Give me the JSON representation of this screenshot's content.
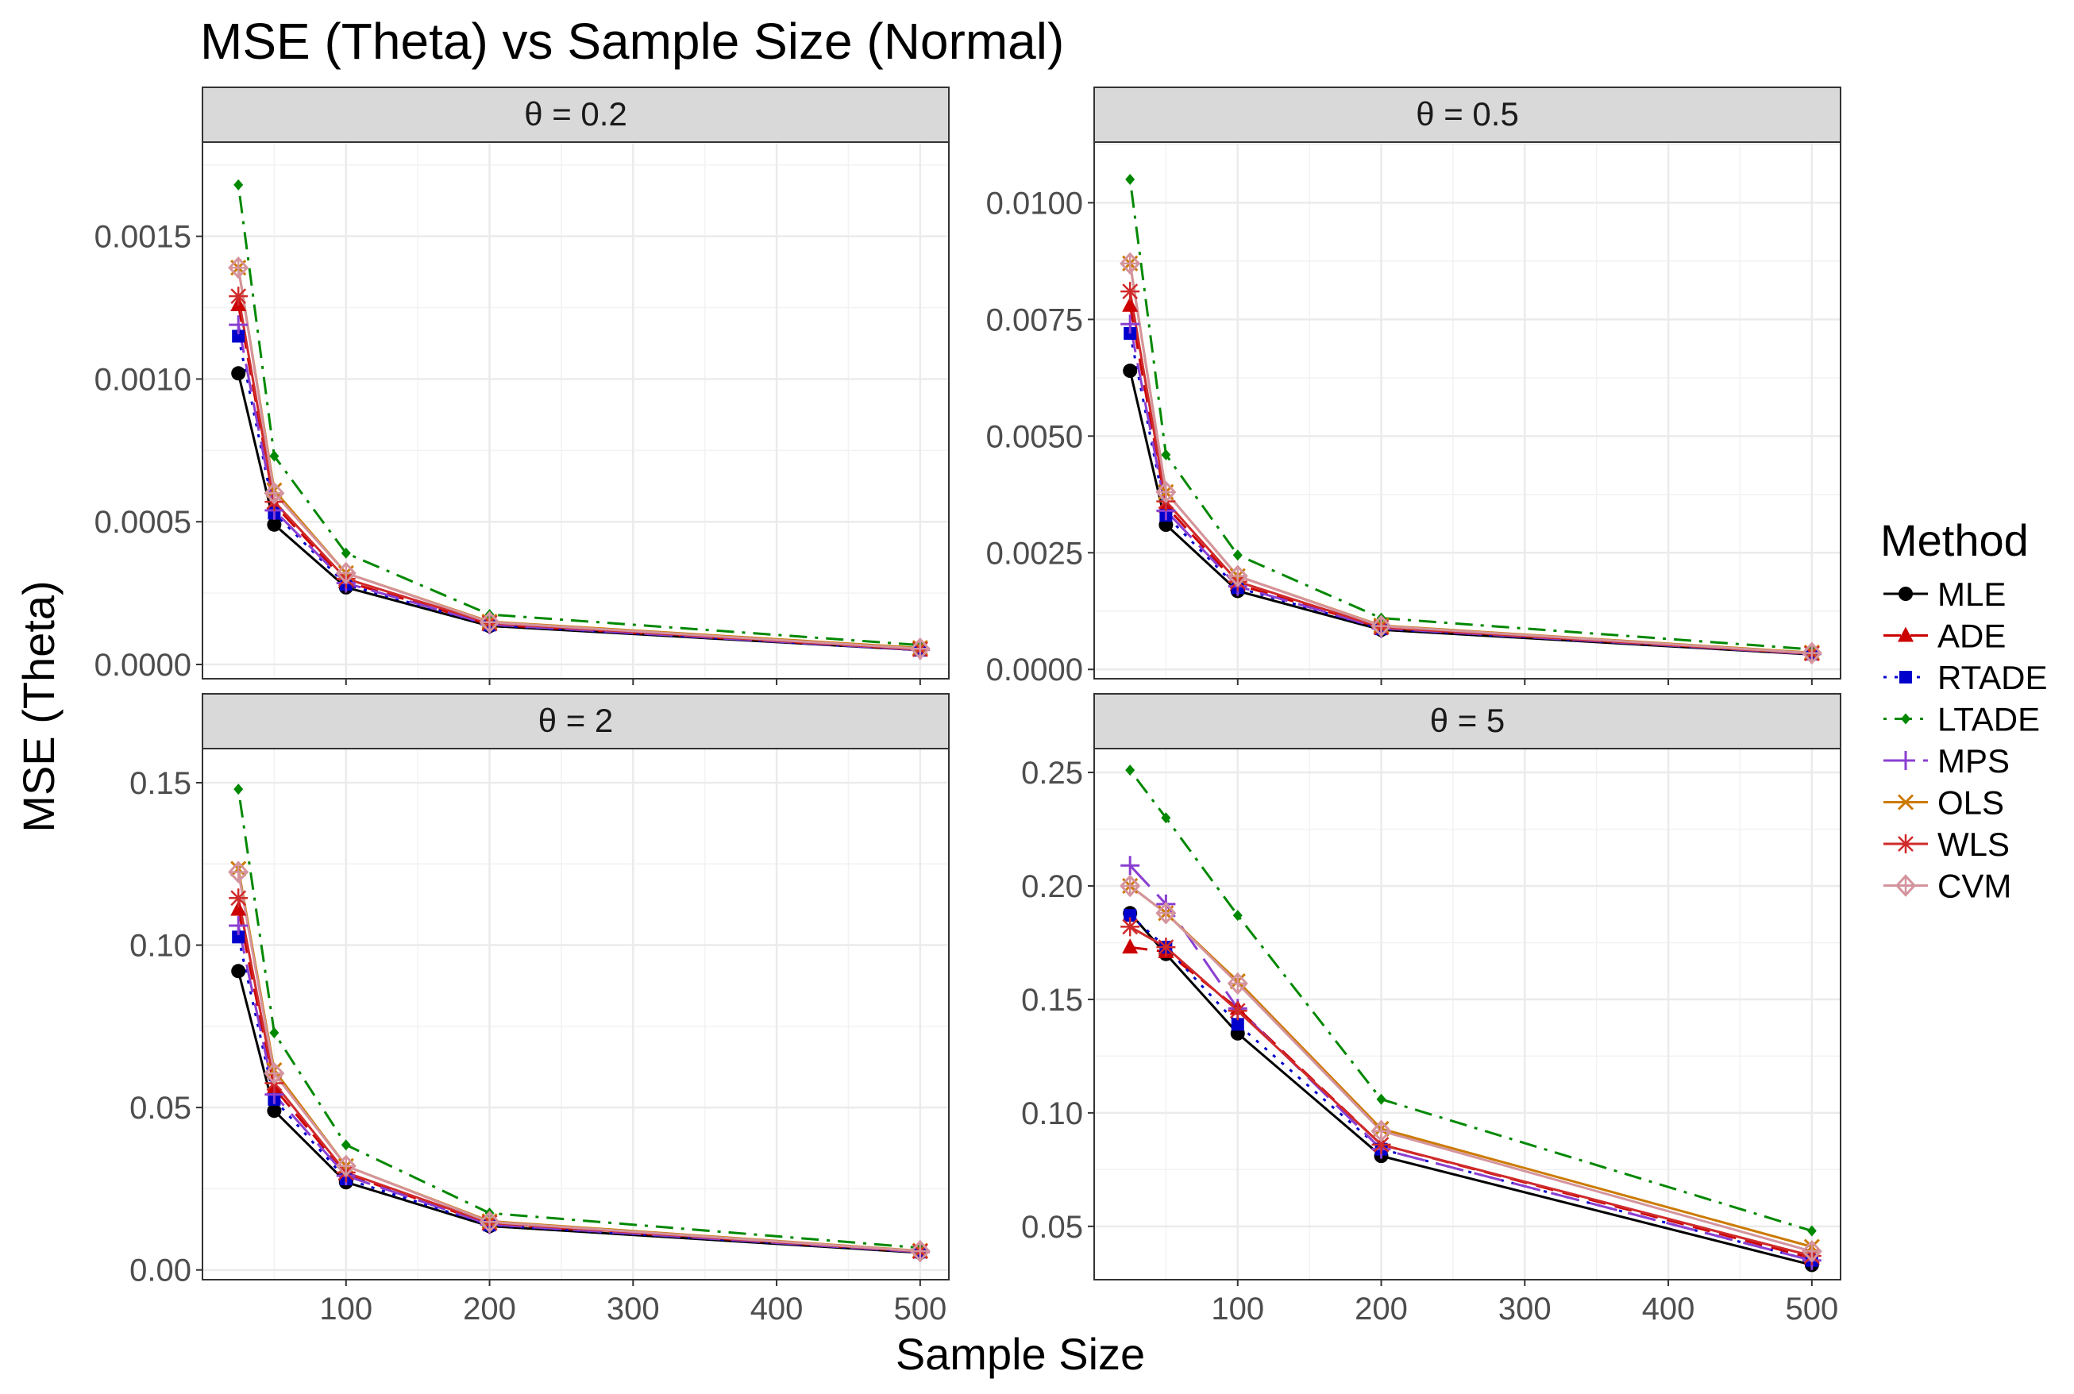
{
  "chart_data": {
    "type": "line",
    "title": "MSE (Theta) vs Sample Size (Normal)",
    "xlabel": "Sample Size",
    "ylabel": "MSE (Theta)",
    "legend_title": "Method",
    "legend_position": "right",
    "grid": true,
    "x": [
      25,
      50,
      100,
      200,
      500
    ],
    "x_ticks": [
      100,
      200,
      300,
      400,
      500
    ],
    "xlim": [
      0,
      520
    ],
    "methods": [
      {
        "name": "MLE",
        "color": "#000000",
        "marker": "circle",
        "dash": "solid"
      },
      {
        "name": "ADE",
        "color": "#cc0000",
        "marker": "triangle",
        "dash": "dashed"
      },
      {
        "name": "RTADE",
        "color": "#0000cc",
        "marker": "square",
        "dash": "dotted"
      },
      {
        "name": "LTADE",
        "color": "#008800",
        "marker": "diamond",
        "dash": "dotdash"
      },
      {
        "name": "MPS",
        "color": "#8a3fd1",
        "marker": "plus",
        "dash": "longdash"
      },
      {
        "name": "OLS",
        "color": "#cc7a00",
        "marker": "cross",
        "dash": "solid"
      },
      {
        "name": "WLS",
        "color": "#d02a2a",
        "marker": "asterisk",
        "dash": "solid"
      },
      {
        "name": "CVM",
        "color": "#d4949e",
        "marker": "diamond-open",
        "dash": "solid"
      }
    ],
    "panels": [
      {
        "label": "θ = 0.2",
        "ylim": [
          -5e-05,
          0.00183
        ],
        "y_ticks": [
          0.0,
          0.0005,
          0.001,
          0.0015
        ],
        "y_tick_labels": [
          "0.0000",
          "0.0005",
          "0.0010",
          "0.0015"
        ],
        "series": [
          {
            "name": "MLE",
            "values": [
              0.00102,
              0.00049,
              0.00027,
              0.000135,
              5e-05
            ]
          },
          {
            "name": "ADE",
            "values": [
              0.00126,
              0.00056,
              0.00029,
              0.00014,
              5.2e-05
            ]
          },
          {
            "name": "RTADE",
            "values": [
              0.00115,
              0.00053,
              0.00028,
              0.000138,
              5e-05
            ]
          },
          {
            "name": "LTADE",
            "values": [
              0.00168,
              0.00073,
              0.00039,
              0.000175,
              6.8e-05
            ]
          },
          {
            "name": "MPS",
            "values": [
              0.00119,
              0.00054,
              0.000285,
              0.00014,
              5.1e-05
            ]
          },
          {
            "name": "OLS",
            "values": [
              0.00139,
              0.00061,
              0.00032,
              0.00015,
              5.8e-05
            ]
          },
          {
            "name": "WLS",
            "values": [
              0.00129,
              0.00057,
              0.0003,
              0.000145,
              5.3e-05
            ]
          },
          {
            "name": "CVM",
            "values": [
              0.00139,
              0.0006,
              0.00032,
              0.000148,
              5.5e-05
            ]
          }
        ]
      },
      {
        "label": "θ = 0.5",
        "ylim": [
          -0.0002,
          0.0113
        ],
        "y_ticks": [
          0.0,
          0.0025,
          0.005,
          0.0075,
          0.01
        ],
        "y_tick_labels": [
          "0.0000",
          "0.0025",
          "0.0050",
          "0.0075",
          "0.0100"
        ],
        "series": [
          {
            "name": "MLE",
            "values": [
              0.0064,
              0.0031,
              0.00168,
              0.00085,
              0.00032
            ]
          },
          {
            "name": "ADE",
            "values": [
              0.0078,
              0.0035,
              0.00182,
              0.00089,
              0.00034
            ]
          },
          {
            "name": "RTADE",
            "values": [
              0.0072,
              0.0033,
              0.00175,
              0.00087,
              0.00033
            ]
          },
          {
            "name": "LTADE",
            "values": [
              0.0105,
              0.0046,
              0.00245,
              0.0011,
              0.00043
            ]
          },
          {
            "name": "MPS",
            "values": [
              0.0074,
              0.0034,
              0.00178,
              0.00088,
              0.00033
            ]
          },
          {
            "name": "OLS",
            "values": [
              0.0087,
              0.0038,
              0.002,
              0.00094,
              0.00036
            ]
          },
          {
            "name": "WLS",
            "values": [
              0.0081,
              0.0036,
              0.00188,
              0.0009,
              0.00034
            ]
          },
          {
            "name": "CVM",
            "values": [
              0.0087,
              0.0038,
              0.002,
              0.00093,
              0.00035
            ]
          }
        ]
      },
      {
        "label": "θ = 2",
        "ylim": [
          -0.003,
          0.1605
        ],
        "y_ticks": [
          0.0,
          0.05,
          0.1,
          0.15
        ],
        "y_tick_labels": [
          "0.00",
          "0.05",
          "0.10",
          "0.15"
        ],
        "series": [
          {
            "name": "MLE",
            "values": [
              0.092,
              0.049,
              0.027,
              0.0135,
              0.0053
            ]
          },
          {
            "name": "ADE",
            "values": [
              0.111,
              0.056,
              0.0295,
              0.0142,
              0.0056
            ]
          },
          {
            "name": "RTADE",
            "values": [
              0.1025,
              0.0525,
              0.028,
              0.0138,
              0.0055
            ]
          },
          {
            "name": "LTADE",
            "values": [
              0.148,
              0.073,
              0.0385,
              0.0175,
              0.0068
            ]
          },
          {
            "name": "MPS",
            "values": [
              0.106,
              0.054,
              0.029,
              0.014,
              0.0055
            ]
          },
          {
            "name": "OLS",
            "values": [
              0.1235,
              0.0615,
              0.032,
              0.015,
              0.0059
            ]
          },
          {
            "name": "WLS",
            "values": [
              0.1145,
              0.0575,
              0.03,
              0.0145,
              0.0057
            ]
          },
          {
            "name": "CVM",
            "values": [
              0.1225,
              0.0605,
              0.032,
              0.0148,
              0.0058
            ]
          }
        ]
      },
      {
        "label": "θ = 5",
        "ylim": [
          0.0265,
          0.2605
        ],
        "y_ticks": [
          0.05,
          0.1,
          0.15,
          0.2,
          0.25
        ],
        "y_tick_labels": [
          "0.05",
          "0.10",
          "0.15",
          "0.20",
          "0.25"
        ],
        "series": [
          {
            "name": "MLE",
            "values": [
              0.188,
              0.17,
              0.135,
              0.081,
              0.033
            ]
          },
          {
            "name": "ADE",
            "values": [
              0.173,
              0.171,
              0.146,
              0.086,
              0.036
            ]
          },
          {
            "name": "RTADE",
            "values": [
              0.187,
              0.173,
              0.139,
              0.084,
              0.035
            ]
          },
          {
            "name": "LTADE",
            "values": [
              0.251,
              0.23,
              0.187,
              0.106,
              0.048
            ]
          },
          {
            "name": "MPS",
            "values": [
              0.209,
              0.192,
              0.146,
              0.084,
              0.035
            ]
          },
          {
            "name": "OLS",
            "values": [
              0.2,
              0.188,
              0.158,
              0.093,
              0.041
            ]
          },
          {
            "name": "WLS",
            "values": [
              0.182,
              0.173,
              0.145,
              0.086,
              0.037
            ]
          },
          {
            "name": "CVM",
            "values": [
              0.2,
              0.188,
              0.157,
              0.092,
              0.039
            ]
          }
        ]
      }
    ]
  }
}
